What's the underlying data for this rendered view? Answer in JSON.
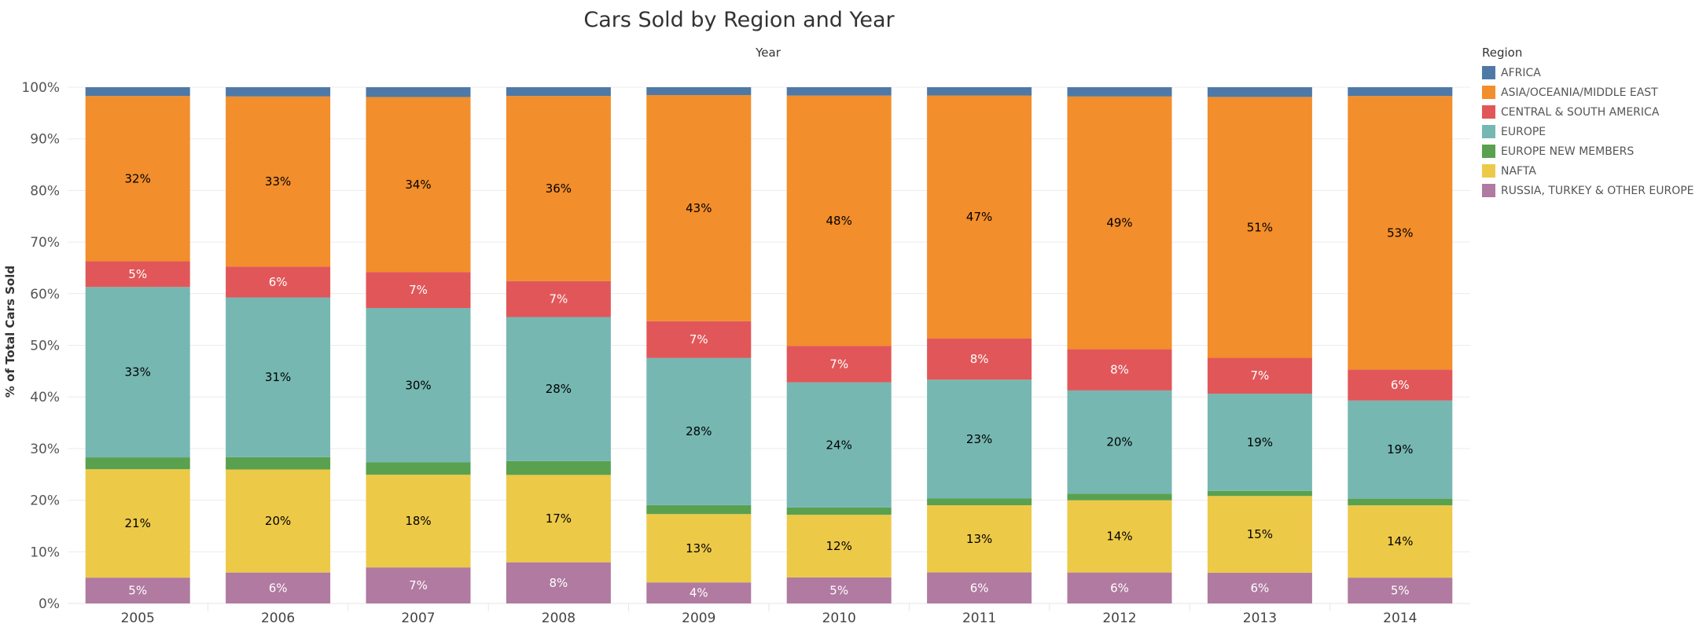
{
  "chart_data": {
    "type": "bar",
    "stacked": true,
    "normalized": true,
    "title": "Cars Sold by Region and Year",
    "xlabel": "Year",
    "ylabel": "% of Total Cars Sold",
    "ylim": [
      0,
      100
    ],
    "y_ticks": [
      "0%",
      "10%",
      "20%",
      "30%",
      "40%",
      "50%",
      "60%",
      "70%",
      "80%",
      "90%",
      "100%"
    ],
    "grid": true,
    "legend_title": "Region",
    "legend_position": "right",
    "categories": [
      "2005",
      "2006",
      "2007",
      "2008",
      "2009",
      "2010",
      "2011",
      "2012",
      "2013",
      "2014"
    ],
    "series": [
      {
        "name": "RUSSIA, TURKEY & OTHER EUROPE",
        "color": "#b07aa1",
        "label_color": "#ffffff",
        "values": [
          5,
          6,
          7,
          8,
          4,
          5,
          6,
          6,
          6,
          5
        ],
        "labels": [
          "5%",
          "6%",
          "7%",
          "8%",
          "4%",
          "5%",
          "6%",
          "6%",
          "6%",
          "5%"
        ]
      },
      {
        "name": "NAFTA",
        "color": "#edc948",
        "label_color": "#000000",
        "values": [
          21,
          20,
          18,
          17,
          13,
          12,
          13,
          14,
          15,
          14
        ],
        "labels": [
          "21%",
          "20%",
          "18%",
          "17%",
          "13%",
          "12%",
          "13%",
          "14%",
          "15%",
          "14%"
        ]
      },
      {
        "name": "EUROPE NEW MEMBERS",
        "color": "#59a14f",
        "label_color": "#000000",
        "values": [
          2.3,
          2.4,
          2.4,
          2.7,
          1.7,
          1.4,
          1.3,
          1.3,
          1.0,
          1.3
        ],
        "labels": [
          "",
          "",
          "",
          "",
          "",
          "",
          "",
          "",
          "",
          ""
        ]
      },
      {
        "name": "EUROPE",
        "color": "#76b7b2",
        "label_color": "#000000",
        "values": [
          33,
          31,
          30,
          28,
          28,
          24,
          23,
          20,
          19,
          19
        ],
        "labels": [
          "33%",
          "31%",
          "30%",
          "28%",
          "28%",
          "24%",
          "23%",
          "20%",
          "19%",
          "19%"
        ]
      },
      {
        "name": "CENTRAL & SOUTH AMERICA",
        "color": "#e15759",
        "label_color": "#ffffff",
        "values": [
          5,
          6,
          7,
          7,
          7,
          7,
          8,
          8,
          7,
          6
        ],
        "labels": [
          "5%",
          "6%",
          "7%",
          "7%",
          "7%",
          "7%",
          "8%",
          "8%",
          "7%",
          "6%"
        ]
      },
      {
        "name": "ASIA/OCEANIA/MIDDLE EAST",
        "color": "#f28e2b",
        "label_color": "#000000",
        "values": [
          32,
          33,
          34,
          36,
          43,
          48,
          47,
          49,
          51,
          53
        ],
        "labels": [
          "32%",
          "33%",
          "34%",
          "36%",
          "43%",
          "48%",
          "47%",
          "49%",
          "51%",
          "53%"
        ]
      },
      {
        "name": "AFRICA",
        "color": "#4e79a7",
        "label_color": "#ffffff",
        "values": [
          1.7,
          1.8,
          1.9,
          1.7,
          1.5,
          1.6,
          1.6,
          1.8,
          1.9,
          1.7
        ],
        "labels": [
          "",
          "",
          "",
          "",
          "",
          "",
          "",
          "",
          "",
          ""
        ]
      }
    ],
    "legend_order": [
      "AFRICA",
      "ASIA/OCEANIA/MIDDLE EAST",
      "CENTRAL & SOUTH AMERICA",
      "EUROPE",
      "EUROPE NEW MEMBERS",
      "NAFTA",
      "RUSSIA, TURKEY & OTHER EUROPE"
    ]
  }
}
